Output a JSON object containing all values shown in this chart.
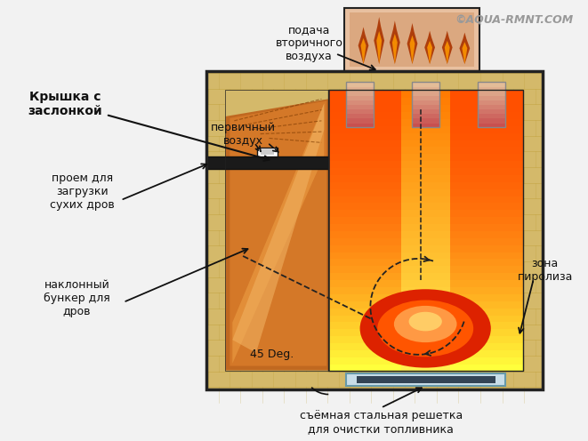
{
  "bg_color": "#f2f2f2",
  "watermark": "©AQUA-RMNT.COM",
  "watermark_color": "#999999",
  "labels": {
    "kryshka": "Крышка с\nзаслонкой",
    "podacha": "подача\nвторичного\nвоздуха",
    "pervichny": "первичный\nвоздух",
    "proem": "проем для\nзагрузки\nсухих дров",
    "naklonny": "наклонный\nбункер для\nдров",
    "zona": "зона\nпиролиза",
    "deg45": "45 Deg.",
    "reshetka": "съёмная стальная решетка\nдля очистки топливника"
  },
  "brick_color": "#d4b96a",
  "brick_line": "#b8982a",
  "bunker_top": "#cc6010",
  "bunker_bot": "#e8a040",
  "fire_bot": "#ff3300",
  "fire_mid": "#ff8800",
  "fire_top": "#ffdd00",
  "fire_white": "#ffff88",
  "ember_dark": "#dd2200",
  "ember_mid": "#ff5500",
  "ember_light": "#ff9944",
  "top_box_bg": "#e8c0a0",
  "flame_dark": "#aa3300",
  "flame_mid": "#dd6600",
  "flame_light": "#ff9900",
  "vent_bot": "#cc7060",
  "vent_top": "#ffbbaa",
  "grate_bg": "#c8dde8",
  "grate_bar": "#334455",
  "lid_color": "#1a1a1a",
  "lid_knob": "#888888",
  "black": "#111111",
  "body_border": "#222222"
}
